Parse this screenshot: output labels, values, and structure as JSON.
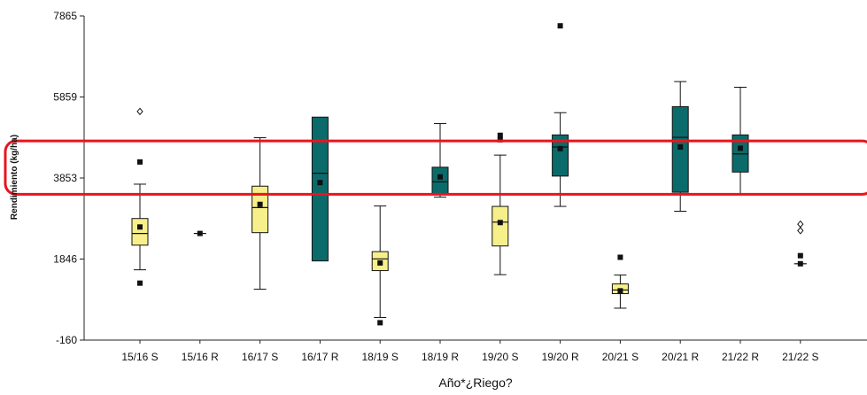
{
  "chart_data": {
    "type": "box",
    "xlabel": "Año*¿Riego?",
    "ylabel": "Rendimiento (kg/ha)",
    "yticks": [
      7865,
      5859,
      3853,
      1846,
      -160
    ],
    "ylim": [
      -160,
      7865
    ],
    "categories": [
      "15/16 S",
      "15/16 R",
      "16/17 S",
      "16/17 R",
      "18/19 S",
      "18/19 R",
      "19/20 S",
      "19/20 R",
      "20/21 S",
      "20/21 R",
      "21/22 R",
      "21/22 S"
    ],
    "series": [
      {
        "name": "S",
        "color": "#f7f08a"
      },
      {
        "name": "R",
        "color": "#0b6b6b"
      }
    ],
    "boxes": [
      {
        "category": "15/16 S",
        "group": "S",
        "min": 1580,
        "q1": 2190,
        "median": 2480,
        "q3": 2850,
        "max": 3700,
        "mean": 2640,
        "outliers": [
          {
            "value": 4250,
            "type": "square"
          },
          {
            "value": 1250,
            "type": "square"
          },
          {
            "value": 5500,
            "type": "diamond"
          }
        ]
      },
      {
        "category": "15/16 R",
        "group": "R",
        "min": null,
        "q1": null,
        "median": 2480,
        "q3": null,
        "max": null,
        "mean": 2480,
        "outliers": []
      },
      {
        "category": "16/17 S",
        "group": "S",
        "min": 1100,
        "q1": 2500,
        "median": 3120,
        "q3": 3650,
        "max": 4850,
        "mean": 3200,
        "outliers": []
      },
      {
        "category": "16/17 R",
        "group": "R",
        "min": null,
        "q1": 1800,
        "median": 3970,
        "q3": 5360,
        "max": null,
        "mean": 3740,
        "outliers": []
      },
      {
        "category": "18/19 S",
        "group": "S",
        "min": 400,
        "q1": 1560,
        "median": 1850,
        "q3": 2030,
        "max": 3160,
        "mean": 1750,
        "outliers": [
          {
            "value": 270,
            "type": "square"
          }
        ]
      },
      {
        "category": "18/19 R",
        "group": "R",
        "min": 3380,
        "q1": 3450,
        "median": 3760,
        "q3": 4120,
        "max": 5200,
        "mean": 3880,
        "outliers": []
      },
      {
        "category": "19/20 S",
        "group": "S",
        "min": 1460,
        "q1": 2170,
        "median": 2760,
        "q3": 3150,
        "max": 4420,
        "mean": 2750,
        "outliers": [
          {
            "value": 4800,
            "type": "square"
          },
          {
            "value": 4910,
            "type": "square"
          }
        ]
      },
      {
        "category": "19/20 R",
        "group": "R",
        "min": 3150,
        "q1": 3900,
        "median": 4620,
        "q3": 4920,
        "max": 5470,
        "mean": 4580,
        "outliers": [
          {
            "value": 7620,
            "type": "square"
          }
        ]
      },
      {
        "category": "20/21 S",
        "group": "S",
        "min": 630,
        "q1": 990,
        "median": 1080,
        "q3": 1230,
        "max": 1450,
        "mean": 1060,
        "outliers": [
          {
            "value": 1890,
            "type": "square"
          }
        ]
      },
      {
        "category": "20/21 R",
        "group": "R",
        "min": 3030,
        "q1": 3500,
        "median": 4860,
        "q3": 5620,
        "max": 6240,
        "mean": 4620,
        "outliers": []
      },
      {
        "category": "21/22 R",
        "group": "R",
        "min": 3450,
        "q1": 4000,
        "median": 4450,
        "q3": 4920,
        "max": 6100,
        "mean": 4590,
        "outliers": []
      },
      {
        "category": "21/22 S",
        "group": "S",
        "min": null,
        "q1": null,
        "median": 1730,
        "q3": null,
        "max": null,
        "mean": 1730,
        "outliers": [
          {
            "value": 1930,
            "type": "square"
          },
          {
            "value": 2550,
            "type": "diamond"
          },
          {
            "value": 2710,
            "type": "diamond"
          }
        ]
      }
    ],
    "highlight": {
      "from": 3450,
      "to": 4770,
      "color": "#e8141e"
    },
    "grid": false,
    "legend": "none"
  }
}
